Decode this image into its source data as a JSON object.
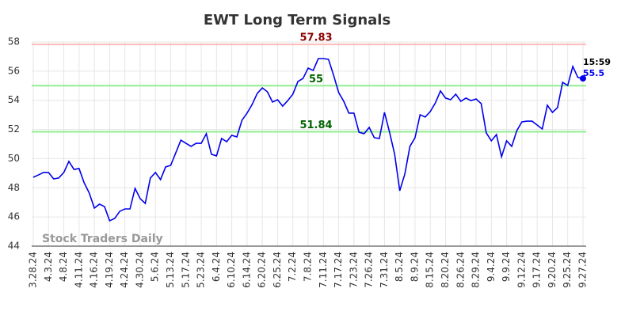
{
  "chart_data": {
    "type": "line",
    "title": "EWT Long Term Signals",
    "categories": [
      "3.28.24",
      null,
      null,
      "4.3.24",
      null,
      null,
      "4.8.24",
      null,
      null,
      "4.11.24",
      null,
      null,
      "4.16.24",
      null,
      null,
      "4.19.24",
      null,
      null,
      "4.24.24",
      null,
      null,
      "4.30.24",
      null,
      null,
      "5.6.24",
      null,
      null,
      "5.13.24",
      null,
      null,
      "5.17.24",
      null,
      null,
      "5.23.24",
      null,
      null,
      "6.4.24",
      null,
      null,
      "6.10.24",
      null,
      null,
      "6.14.24",
      null,
      null,
      "6.20.24",
      null,
      null,
      "6.25.24",
      null,
      null,
      "7.2.24",
      null,
      null,
      "7.8.24",
      null,
      null,
      "7.11.24",
      null,
      null,
      "7.17.24",
      null,
      null,
      "7.23.24",
      null,
      null,
      "7.26.24",
      null,
      null,
      "7.31.24",
      null,
      null,
      "8.5.24",
      null,
      null,
      "8.9.24",
      null,
      null,
      "8.15.24",
      null,
      null,
      "8.20.24",
      null,
      null,
      "8.26.24",
      null,
      null,
      "8.29.24",
      null,
      null,
      "9.4.24",
      null,
      null,
      "9.9.24",
      null,
      null,
      "9.12.24",
      null,
      null,
      "9.17.24",
      null,
      null,
      "9.20.24",
      null,
      null,
      "9.25.24",
      null,
      null,
      "9.27.24"
    ],
    "series": [
      {
        "name": "EWT",
        "color": "#0000ee",
        "values": [
          48.72,
          48.88,
          49.05,
          49.05,
          48.61,
          48.67,
          49.05,
          49.81,
          49.26,
          49.32,
          48.34,
          47.64,
          46.61,
          46.88,
          46.71,
          45.74,
          45.9,
          46.39,
          46.55,
          46.55,
          47.96,
          47.26,
          46.93,
          48.67,
          49.05,
          48.56,
          49.43,
          49.54,
          50.4,
          51.27,
          51.05,
          50.84,
          51.05,
          51.05,
          51.71,
          50.3,
          50.19,
          51.38,
          51.16,
          51.6,
          51.49,
          52.63,
          53.12,
          53.71,
          54.47,
          54.85,
          54.58,
          53.88,
          54.04,
          53.6,
          53.98,
          54.42,
          55.29,
          55.5,
          56.21,
          56.05,
          56.86,
          56.86,
          56.81,
          55.72,
          54.53,
          53.93,
          53.12,
          53.12,
          51.81,
          51.71,
          52.14,
          51.43,
          51.38,
          53.17,
          51.81,
          50.3,
          47.8,
          48.94,
          50.84,
          51.43,
          53.01,
          52.85,
          53.23,
          53.82,
          54.64,
          54.15,
          54.04,
          54.42,
          53.93,
          54.15,
          53.98,
          54.09,
          53.77,
          51.76,
          51.22,
          51.65,
          50.13,
          51.22,
          50.84,
          51.92,
          52.52,
          52.57,
          52.57,
          52.3,
          52.03,
          53.66,
          53.17,
          53.5,
          55.23,
          55.02,
          56.32,
          55.56,
          55.5
        ]
      }
    ],
    "ylim": [
      44,
      58
    ],
    "yticks": [
      44,
      46,
      48,
      50,
      52,
      54,
      56,
      58
    ],
    "grid": true,
    "reference_lines": [
      {
        "value": 57.83,
        "label": "57.83",
        "color": "#ffbbbb",
        "label_color": "#8b0000"
      },
      {
        "value": 55,
        "label": "55",
        "color": "#90ee90",
        "label_color": "#006400"
      },
      {
        "value": 51.84,
        "label": "51.84",
        "color": "#90ee90",
        "label_color": "#006400"
      }
    ],
    "last_time": "15:59",
    "watermark": "Stock Traders Daily"
  }
}
